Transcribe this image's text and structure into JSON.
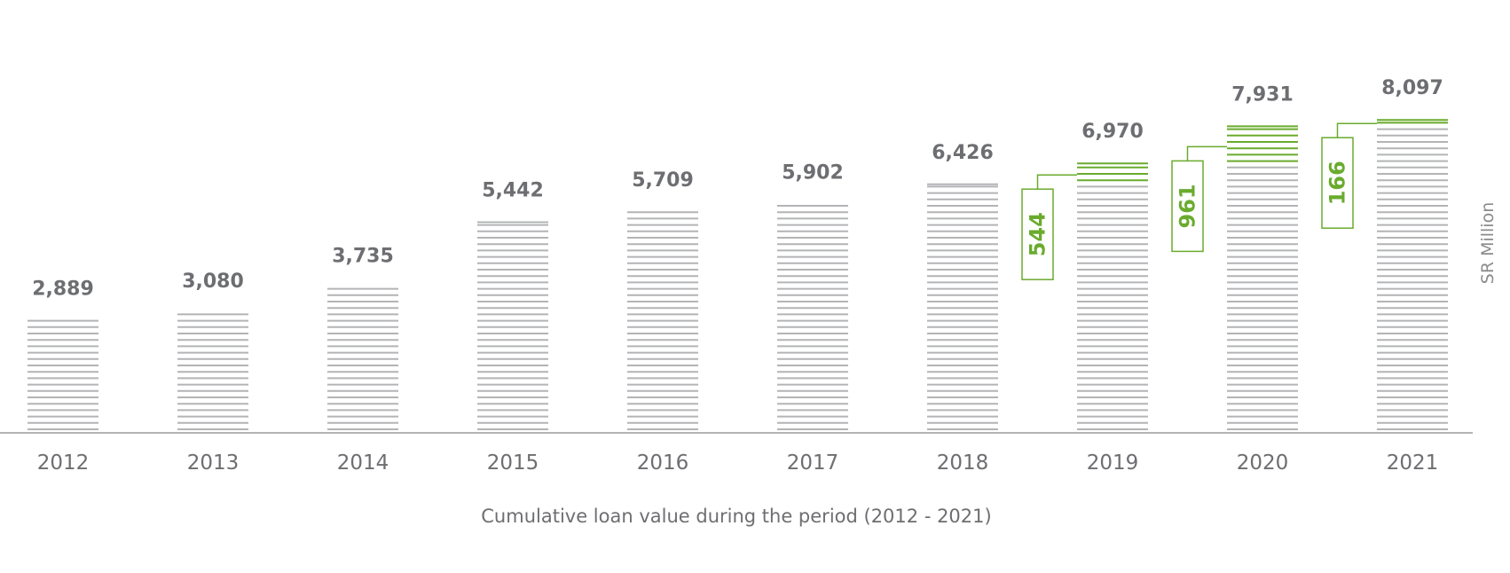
{
  "chart_data": {
    "type": "bar",
    "xlabel": "Cumulative loan value during the period (2012 - 2021)",
    "ylabel": "SR Million",
    "categories": [
      "2012",
      "2013",
      "2014",
      "2015",
      "2016",
      "2017",
      "2018",
      "2019",
      "2020",
      "2021"
    ],
    "values": [
      2889,
      3080,
      3735,
      5442,
      5709,
      5902,
      6426,
      6970,
      7931,
      8097
    ],
    "value_labels": [
      "2,889",
      "3,080",
      "3,735",
      "5,442",
      "5,709",
      "5,902",
      "6,426",
      "6,970",
      "7,931",
      "8,097"
    ],
    "increments": [
      {
        "category": "2019",
        "value": 544,
        "label": "544"
      },
      {
        "category": "2020",
        "value": 961,
        "label": "961"
      },
      {
        "category": "2021",
        "value": 166,
        "label": "166"
      }
    ],
    "ylim": [
      0,
      9000
    ],
    "grid": false,
    "colors": {
      "bar": "#b3b4b6",
      "increment": "#6aab2e",
      "text": "#6d6e71",
      "axis": "#b3b4b6"
    }
  }
}
